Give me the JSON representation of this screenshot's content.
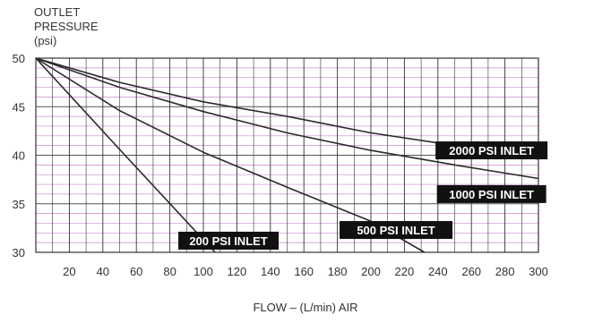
{
  "chart_data": {
    "type": "line",
    "ylabel": [
      "OUTLET",
      "PRESSURE",
      "(psi)"
    ],
    "xlabel": "FLOW – (L/min) AIR",
    "xlim": [
      0,
      300
    ],
    "ylim": [
      30,
      50
    ],
    "x_ticks": [
      20,
      40,
      60,
      80,
      100,
      120,
      140,
      160,
      180,
      200,
      220,
      240,
      260,
      280,
      300
    ],
    "y_ticks": [
      30,
      35,
      40,
      45,
      50
    ],
    "grid": true,
    "series": [
      {
        "name": "2000 PSI INLET",
        "points": [
          [
            0,
            50
          ],
          [
            50,
            47.5
          ],
          [
            100,
            45.5
          ],
          [
            150,
            44
          ],
          [
            200,
            42.3
          ],
          [
            250,
            41
          ],
          [
            300,
            39.6
          ]
        ]
      },
      {
        "name": "1000 PSI INLET",
        "points": [
          [
            0,
            50
          ],
          [
            50,
            47
          ],
          [
            100,
            44.5
          ],
          [
            150,
            42.3
          ],
          [
            200,
            40.5
          ],
          [
            250,
            39
          ],
          [
            300,
            37.6
          ]
        ]
      },
      {
        "name": "500 PSI INLET",
        "points": [
          [
            0,
            50
          ],
          [
            50,
            44.6
          ],
          [
            100,
            40.3
          ],
          [
            150,
            36.7
          ],
          [
            200,
            33.2
          ],
          [
            232,
            30
          ]
        ]
      },
      {
        "name": "200 PSI INLET",
        "points": [
          [
            0,
            50
          ],
          [
            50,
            40.6
          ],
          [
            107,
            30
          ]
        ]
      }
    ],
    "colors": {
      "curve": "#2a2a2a",
      "grid_vertical": "#333333",
      "grid_horizontal": "#cc88cc",
      "label_bg": "#111111",
      "label_text": "#ffffff"
    }
  }
}
